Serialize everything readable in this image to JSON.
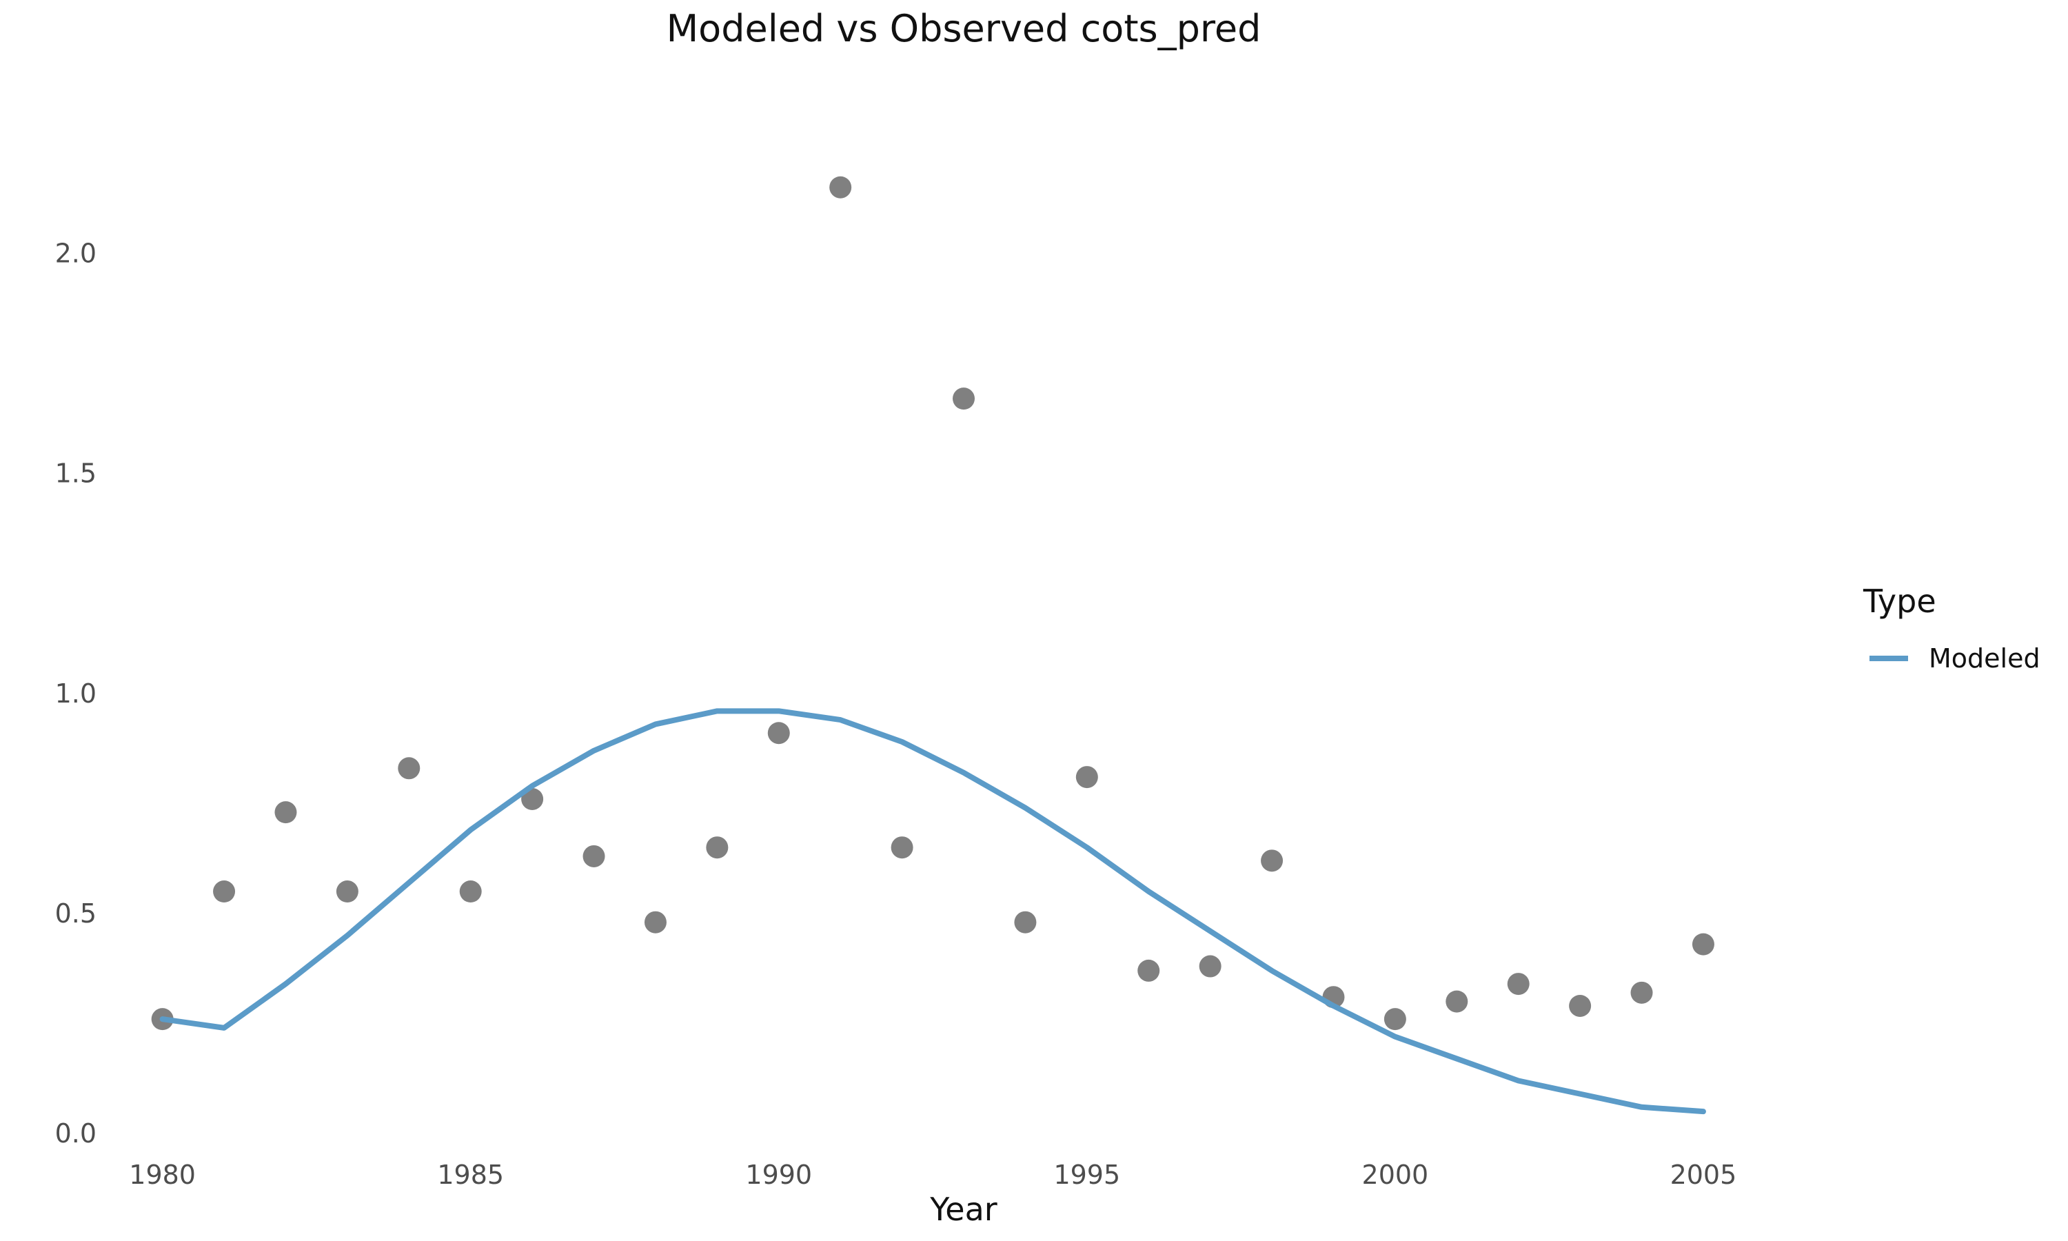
{
  "chart_data": {
    "type": "line",
    "title": "Modeled vs Observed cots_pred",
    "xlabel": "Year",
    "ylabel": "",
    "xlim": [
      1979.4,
      2006.6
    ],
    "ylim": [
      -0.05,
      2.3
    ],
    "x_ticks": [
      "1980",
      "1985",
      "1990",
      "1995",
      "2000",
      "2005"
    ],
    "y_ticks": [
      "0.0",
      "0.5",
      "1.0",
      "1.5",
      "2.0"
    ],
    "grid": false,
    "legend": {
      "title": "Type",
      "position": "right",
      "entries": [
        "Modeled"
      ]
    },
    "colors": {
      "modeled": "#5b9bc8",
      "observed": "#808080"
    },
    "series": [
      {
        "name": "Modeled",
        "kind": "line",
        "x": [
          1980,
          1981,
          1982,
          1983,
          1984,
          1985,
          1986,
          1987,
          1988,
          1989,
          1990,
          1991,
          1992,
          1993,
          1994,
          1995,
          1996,
          1997,
          1998,
          1999,
          2000,
          2001,
          2002,
          2003,
          2004,
          2005
        ],
        "values": [
          0.26,
          0.24,
          0.34,
          0.45,
          0.57,
          0.69,
          0.79,
          0.87,
          0.93,
          0.96,
          0.96,
          0.94,
          0.89,
          0.82,
          0.74,
          0.65,
          0.55,
          0.46,
          0.37,
          0.29,
          0.22,
          0.17,
          0.12,
          0.09,
          0.06,
          0.05
        ]
      },
      {
        "name": "Observed",
        "kind": "scatter",
        "x": [
          1980,
          1981,
          1982,
          1983,
          1984,
          1985,
          1986,
          1987,
          1988,
          1989,
          1990,
          1991,
          1992,
          1993,
          1994,
          1995,
          1996,
          1997,
          1998,
          1999,
          2000,
          2001,
          2002,
          2003,
          2004,
          2005
        ],
        "values": [
          0.26,
          0.55,
          0.73,
          0.55,
          0.83,
          0.55,
          0.76,
          0.63,
          0.48,
          0.65,
          0.91,
          2.15,
          0.65,
          1.67,
          0.48,
          0.81,
          0.37,
          0.38,
          0.62,
          0.31,
          0.26,
          0.3,
          0.34,
          0.29,
          0.32,
          0.43
        ]
      }
    ]
  }
}
